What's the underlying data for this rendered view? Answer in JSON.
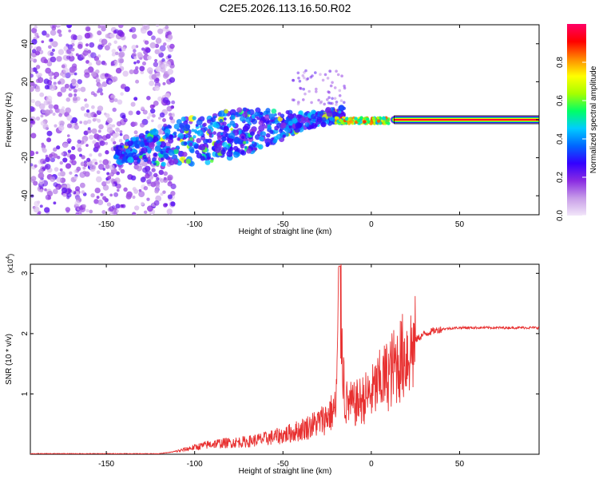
{
  "title": "C2E5.2026.113.16.50.R02",
  "chart_data": [
    {
      "type": "heatmap",
      "description": "Spectrogram of frequency vs height of straight line",
      "xlabel": "Height of straight line (km)",
      "ylabel": "Frequency (Hz)",
      "xlim": [
        -193,
        95
      ],
      "ylim": [
        -50,
        50
      ],
      "xticks": [
        -150,
        -100,
        -50,
        0,
        50
      ],
      "yticks": [
        -40,
        -20,
        0,
        20,
        40
      ],
      "colorbar": {
        "label": "Normalized spectral amplitude",
        "range": [
          0,
          1
        ],
        "ticks": [
          0.0,
          0.2,
          0.4,
          0.6,
          0.8
        ],
        "colors": [
          "#f2e6f9",
          "#c79de8",
          "#8a2be2",
          "#3300ff",
          "#0066ff",
          "#00ccff",
          "#00ff66",
          "#a6ff00",
          "#ffff00",
          "#ff8800",
          "#ff0000",
          "#ff0066"
        ]
      },
      "features": [
        {
          "name": "broadband noise",
          "x_range": [
            -193,
            -112
          ],
          "y_range": [
            -50,
            50
          ],
          "amplitude": 0.15
        },
        {
          "name": "rising trace",
          "x_range": [
            -145,
            -15
          ],
          "freq_at_start": -18,
          "freq_at_end": 3,
          "amplitude": 0.35
        },
        {
          "name": "carrier line",
          "x_range": [
            -15,
            95
          ],
          "freq": 0,
          "amplitude": 0.95
        }
      ]
    },
    {
      "type": "line",
      "xlabel": "Height of straight line (km)",
      "ylabel": "SNR (10 * v/v)",
      "multiplier_label": "(x10",
      "multiplier_exp": "4",
      "multiplier_close": ")",
      "xlim": [
        -193,
        95
      ],
      "ylim": [
        0,
        3.15
      ],
      "xticks": [
        -150,
        -100,
        -50,
        0,
        50
      ],
      "yticks": [
        1,
        2,
        3
      ],
      "color": "#e83030",
      "series": [
        {
          "name": "SNR",
          "x": [
            -193,
            -120,
            -112,
            -100,
            -90,
            -80,
            -70,
            -60,
            -50,
            -40,
            -30,
            -25,
            -20,
            -18,
            -15,
            -10,
            -5,
            0,
            5,
            10,
            15,
            20,
            25,
            30,
            35,
            40,
            50,
            60,
            70,
            80,
            90,
            95
          ],
          "y": [
            0.01,
            0.01,
            0.04,
            0.12,
            0.18,
            0.2,
            0.22,
            0.27,
            0.33,
            0.42,
            0.55,
            0.65,
            0.8,
            3.1,
            0.9,
            0.85,
            0.95,
            1.05,
            1.25,
            1.4,
            1.6,
            1.75,
            1.9,
            2.0,
            2.05,
            2.08,
            2.1,
            2.1,
            2.1,
            2.1,
            2.1,
            2.1
          ]
        }
      ]
    }
  ]
}
